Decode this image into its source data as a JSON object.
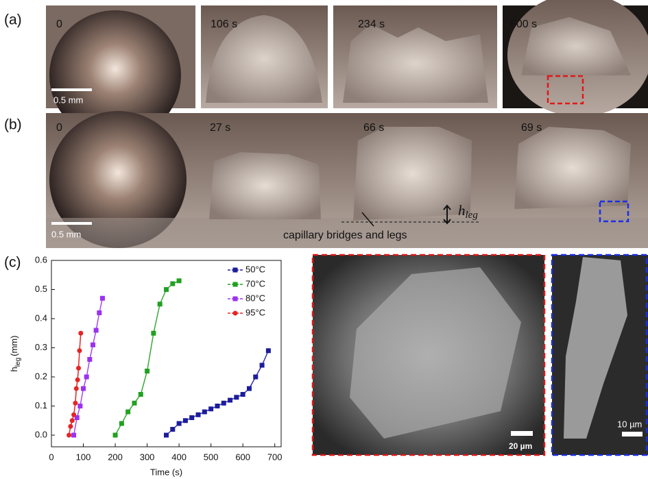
{
  "panels": {
    "a": {
      "label": "(a)",
      "times": [
        "0",
        "106 s",
        "234 s",
        "600 s"
      ],
      "scale": "0.5 mm"
    },
    "b": {
      "label": "(b)",
      "times": [
        "0",
        "27 s",
        "66 s",
        "69 s"
      ],
      "scale": "0.5 mm",
      "h_label": {
        "main": "h",
        "sub": "leg"
      },
      "annotation": "capillary bridges and legs"
    },
    "c": {
      "label": "(c)"
    },
    "sem": {
      "red_scale": "20 µm",
      "blue_scale": "10 µm"
    }
  },
  "chart_data": {
    "type": "line",
    "x_label": "Time (s)",
    "y_label": {
      "main": "h",
      "sub": "leg",
      "unit": "(mm)"
    },
    "xlim": [
      0,
      720
    ],
    "xticks": [
      0,
      100,
      200,
      300,
      400,
      500,
      600,
      700
    ],
    "ylim": [
      -0.04,
      0.6
    ],
    "yticks": [
      {
        "value": 0,
        "label": "0.0"
      },
      {
        "value": 0.1,
        "label": "0.1"
      },
      {
        "value": 0.2,
        "label": "0.2"
      },
      {
        "value": 0.3,
        "label": "0.3"
      },
      {
        "value": 0.4,
        "label": "0.4"
      },
      {
        "value": 0.5,
        "label": "0.5"
      },
      {
        "value": 0.6,
        "label": "0.6"
      }
    ],
    "legend": "upper right",
    "series": [
      {
        "name": "50°C",
        "color": "#1c1c9c",
        "marker": "square",
        "x": [
          360,
          380,
          400,
          420,
          440,
          460,
          480,
          500,
          520,
          540,
          560,
          580,
          600,
          620,
          640,
          660,
          680
        ],
        "values": [
          0,
          0.02,
          0.04,
          0.05,
          0.06,
          0.07,
          0.08,
          0.09,
          0.1,
          0.11,
          0.12,
          0.13,
          0.14,
          0.16,
          0.2,
          0.24,
          0.29
        ]
      },
      {
        "name": "70°C",
        "color": "#22a022",
        "marker": "square",
        "x": [
          200,
          220,
          240,
          260,
          280,
          300,
          320,
          340,
          360,
          380,
          400
        ],
        "values": [
          0,
          0.04,
          0.08,
          0.11,
          0.14,
          0.22,
          0.35,
          0.45,
          0.5,
          0.52,
          0.53
        ]
      },
      {
        "name": "80°C",
        "color": "#9a32f0",
        "marker": "square",
        "x": [
          70,
          80,
          90,
          100,
          110,
          120,
          130,
          140,
          150,
          160
        ],
        "values": [
          0,
          0.06,
          0.1,
          0.16,
          0.2,
          0.26,
          0.31,
          0.36,
          0.42,
          0.47
        ]
      },
      {
        "name": "95°C",
        "color": "#e52424",
        "marker": "circle",
        "x": [
          55,
          60,
          65,
          70,
          75,
          78,
          82,
          85,
          88,
          92
        ],
        "values": [
          0,
          0.03,
          0.05,
          0.07,
          0.11,
          0.16,
          0.19,
          0.23,
          0.29,
          0.35
        ]
      }
    ]
  }
}
